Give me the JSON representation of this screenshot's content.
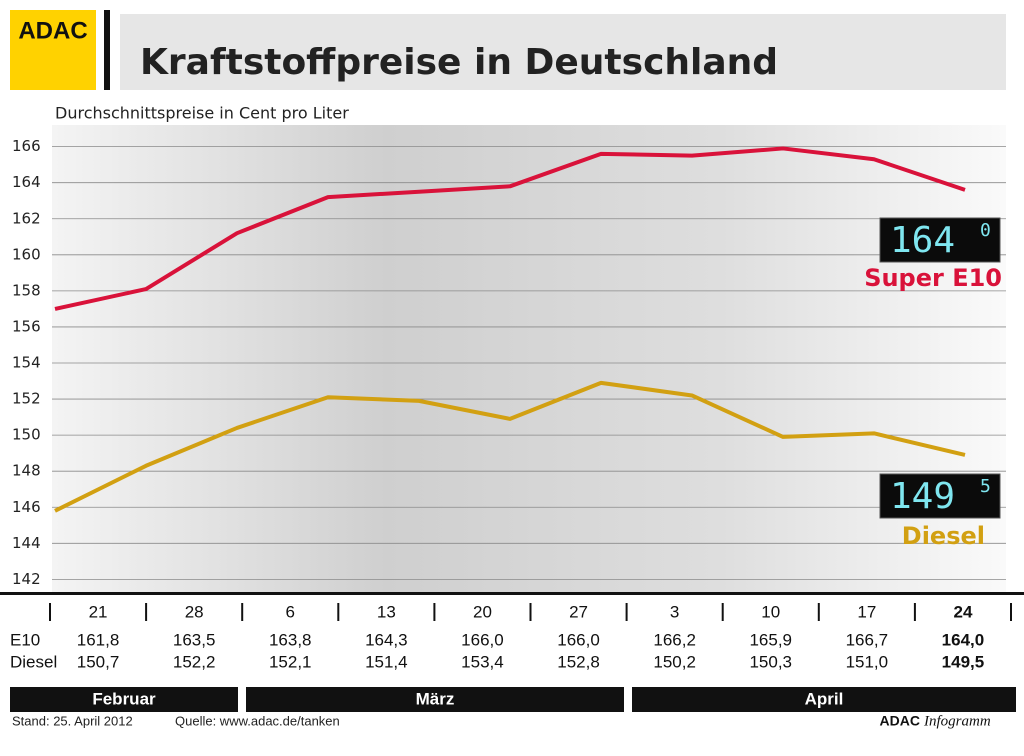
{
  "header": {
    "logo": "ADAC",
    "title": "Kraftstoffpreise in Deutschland",
    "subtitle": "Durchschnittspreise in Cent pro Liter"
  },
  "chart_data": {
    "type": "line",
    "ylim": [
      141.3,
      167.2
    ],
    "yticks": [
      142,
      144,
      146,
      148,
      150,
      152,
      154,
      156,
      158,
      160,
      162,
      164,
      166
    ],
    "grid": true,
    "series": [
      {
        "name": "Super E10",
        "color": "#d9123a",
        "values": [
          157.0,
          158.1,
          161.2,
          163.2,
          163.5,
          163.8,
          165.6,
          165.5,
          165.9,
          165.3,
          163.6
        ]
      },
      {
        "name": "Diesel",
        "color": "#d2a012",
        "values": [
          145.8,
          148.3,
          150.4,
          152.1,
          151.9,
          150.9,
          152.9,
          152.2,
          149.9,
          150.1,
          148.9
        ]
      }
    ],
    "displays": [
      {
        "main": "164",
        "sup": "0"
      },
      {
        "main": "149",
        "sup": "5"
      }
    ]
  },
  "table": {
    "dates": [
      "21",
      "28",
      "6",
      "13",
      "20",
      "27",
      "3",
      "10",
      "17",
      "24"
    ],
    "rows": [
      {
        "label": "E10",
        "values": [
          "161,8",
          "163,5",
          "163,8",
          "164,3",
          "166,0",
          "166,0",
          "166,2",
          "165,9",
          "166,7",
          "164,0"
        ]
      },
      {
        "label": "Diesel",
        "values": [
          "150,7",
          "152,2",
          "152,1",
          "151,4",
          "153,4",
          "152,8",
          "150,2",
          "150,3",
          "151,0",
          "149,5"
        ]
      }
    ],
    "months": [
      "Februar",
      "März",
      "April"
    ]
  },
  "footer": {
    "stand": "Stand: 25. April 2012",
    "source": "Quelle: www.adac.de/tanken",
    "brand": "ADAC",
    "brand_sub": "Infogramm"
  }
}
